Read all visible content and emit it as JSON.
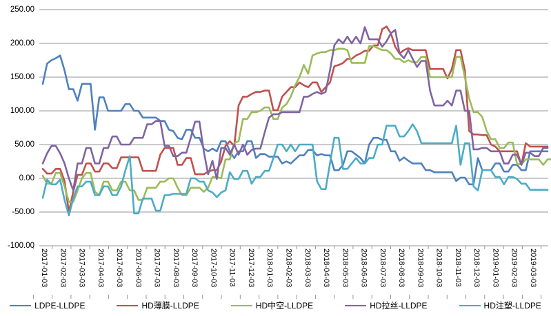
{
  "chart_data": {
    "type": "line",
    "title": "",
    "grid": true,
    "legend_position": "bottom",
    "y_axis": {
      "tick_labels": [
        "250.00",
        "200.00",
        "150.00",
        "100.00",
        "50.00",
        "0.00",
        "-50.00",
        "-100.00"
      ],
      "tick_values": [
        250,
        200,
        150,
        100,
        50,
        0,
        -50,
        -100
      ],
      "min": -100,
      "max": 250
    },
    "x_axis": {
      "tick_labels": [
        "2017-01-03",
        "2017-02-03",
        "2017-03-03",
        "2017-04-03",
        "2017-05-03",
        "2017-06-03",
        "2017-07-03",
        "2017-08-03",
        "2017-09-03",
        "2017-10-03",
        "2017-11-03",
        "2017-12-03",
        "2018-01-03",
        "2018-02-03",
        "2018-03-03",
        "2018-04-03",
        "2018-05-03",
        "2018-06-03",
        "2018-07-03",
        "2018-08-03",
        "2018-09-03",
        "2018-10-03",
        "2018-11-03",
        "2018-12-03",
        "2019-01-03",
        "2019-02-03",
        "2019-03-03"
      ]
    },
    "series": [
      {
        "name": "LDPE-LLDPE",
        "color": "#4F81BD",
        "values": [
          140,
          170,
          175,
          178,
          182,
          160,
          132,
          132,
          115,
          140,
          140,
          140,
          72,
          120,
          120,
          100,
          100,
          100,
          100,
          110,
          110,
          100,
          100,
          90,
          90,
          90,
          90,
          85,
          85,
          72,
          70,
          60,
          58,
          72,
          72,
          60,
          60,
          44,
          40,
          44,
          40,
          55,
          55,
          40,
          30,
          40,
          40,
          55,
          55,
          30,
          36,
          36,
          32,
          32,
          32,
          22,
          25,
          22,
          28,
          34,
          34,
          42,
          42,
          34,
          36,
          34,
          34,
          12,
          12,
          20,
          40,
          40,
          35,
          30,
          22,
          50,
          60,
          60,
          57,
          57,
          40,
          40,
          26,
          31,
          26,
          22,
          22,
          22,
          12,
          12,
          9,
          9,
          9,
          9,
          9,
          -4,
          1,
          1,
          -9,
          -9,
          30,
          12,
          12,
          12,
          22,
          22,
          10,
          10,
          20,
          20,
          12,
          12,
          40,
          40,
          40,
          40,
          40
        ]
      },
      {
        "name": "HD薄膜-LLDPE",
        "color": "#C0504D",
        "values": [
          14,
          7,
          7,
          14,
          14,
          -4,
          -50,
          -20,
          5,
          5,
          22,
          22,
          10,
          10,
          22,
          22,
          15,
          15,
          31,
          31,
          31,
          31,
          31,
          11,
          11,
          11,
          11,
          35,
          45,
          45,
          45,
          20,
          20,
          30,
          30,
          6,
          6,
          6,
          10,
          12,
          12,
          25,
          48,
          55,
          48,
          108,
          121,
          121,
          125,
          128,
          128,
          130,
          130,
          101,
          101,
          121,
          128,
          135,
          135,
          142,
          138,
          135,
          142,
          142,
          128,
          135,
          142,
          166,
          168,
          171,
          177,
          177,
          182,
          185,
          189,
          189,
          197,
          197,
          221,
          225,
          215,
          195,
          185,
          190,
          193,
          190,
          190,
          190,
          190,
          162,
          162,
          162,
          162,
          148,
          162,
          190,
          190,
          160,
          70,
          65,
          65,
          64,
          64,
          50,
          47,
          40,
          40,
          40,
          40,
          40,
          20,
          52,
          47,
          47,
          47,
          47,
          47
        ]
      },
      {
        "name": "HD中空-LLDPE",
        "color": "#9BBB59",
        "values": [
          4,
          -8,
          -8,
          8,
          8,
          -12,
          -35,
          -35,
          -18,
          0,
          8,
          8,
          -20,
          -25,
          -5,
          -5,
          -18,
          -18,
          -5,
          -5,
          -18,
          -18,
          -32,
          -32,
          -14,
          -14,
          -14,
          -5,
          -5,
          0,
          0,
          -14,
          -25,
          -25,
          -14,
          -14,
          -14,
          -20,
          -14,
          2,
          2,
          0,
          28,
          28,
          52,
          55,
          88,
          88,
          98,
          98,
          100,
          105,
          105,
          88,
          88,
          105,
          110,
          121,
          138,
          150,
          168,
          155,
          182,
          185,
          187,
          187,
          190,
          190,
          192,
          192,
          190,
          171,
          171,
          171,
          171,
          196,
          196,
          193,
          190,
          190,
          185,
          177,
          177,
          172,
          175,
          172,
          172,
          180,
          180,
          150,
          150,
          150,
          150,
          150,
          150,
          180,
          180,
          150,
          118,
          98,
          98,
          91,
          70,
          58,
          58,
          45,
          45,
          53,
          53,
          21,
          21,
          28,
          28,
          28,
          28,
          20,
          28,
          28
        ]
      },
      {
        "name": "HD拉丝-LLDPE",
        "color": "#8064A2",
        "values": [
          22,
          37,
          48,
          48,
          37,
          22,
          0,
          -18,
          22,
          22,
          45,
          45,
          22,
          22,
          45,
          45,
          62,
          62,
          50,
          50,
          50,
          60,
          60,
          60,
          80,
          80,
          85,
          85,
          48,
          48,
          33,
          33,
          38,
          38,
          60,
          84,
          84,
          40,
          6,
          26,
          -1,
          45,
          45,
          35,
          50,
          35,
          50,
          35,
          42,
          44,
          44,
          68,
          90,
          95,
          95,
          98,
          98,
          98,
          98,
          98,
          121,
          121,
          125,
          128,
          125,
          128,
          160,
          197,
          206,
          200,
          210,
          200,
          210,
          200,
          224,
          206,
          206,
          206,
          195,
          203,
          215,
          220,
          185,
          178,
          190,
          177,
          165,
          174,
          174,
          130,
          108,
          108,
          108,
          115,
          108,
          130,
          130,
          100,
          100,
          43,
          43,
          45,
          45,
          40,
          40,
          40,
          22,
          22,
          35,
          35,
          20,
          38,
          38,
          33,
          33,
          45,
          45
        ]
      },
      {
        "name": "HD注塑-LLDPE",
        "color": "#4BACC6",
        "values": [
          -29,
          -2,
          -9,
          -9,
          -2,
          -32,
          -55,
          -30,
          -12,
          -12,
          -5,
          -5,
          -25,
          -25,
          -12,
          -12,
          -25,
          -25,
          -12,
          12,
          33,
          -52,
          -52,
          -30,
          -30,
          -30,
          -48,
          -48,
          -25,
          -25,
          -23,
          -23,
          -23,
          -23,
          0,
          0,
          -5,
          -5,
          -18,
          -21,
          -28,
          -21,
          -18,
          9,
          -1,
          -1,
          11,
          11,
          -8,
          2,
          2,
          11,
          11,
          30,
          50,
          50,
          40,
          50,
          40,
          50,
          50,
          50,
          50,
          -4,
          -16,
          -16,
          22,
          60,
          60,
          14,
          14,
          22,
          30,
          22,
          22,
          30,
          30,
          50,
          50,
          78,
          78,
          78,
          62,
          62,
          70,
          80,
          70,
          52,
          52,
          52,
          52,
          52,
          52,
          52,
          52,
          78,
          20,
          52,
          52,
          -12,
          -18,
          12,
          12,
          12,
          2,
          2,
          -9,
          2,
          2,
          -1,
          -8,
          -8,
          -17,
          -17,
          -17,
          -17,
          -17
        ]
      }
    ]
  },
  "styles": {
    "background": "#FFFFFF",
    "gridline_color": "#949494",
    "tick_color": "#949494",
    "axis_text_color": "#000000"
  }
}
